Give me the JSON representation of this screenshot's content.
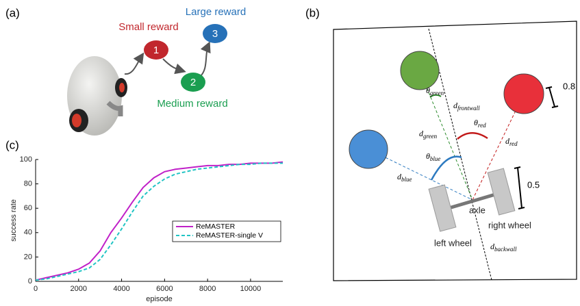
{
  "panels": {
    "a": "(a)",
    "b": "(b)",
    "c": "(c)"
  },
  "reward_diagram": {
    "nodes": [
      {
        "label": "1",
        "caption": "Small reward"
      },
      {
        "label": "2",
        "caption": "Medium reward"
      },
      {
        "label": "3",
        "caption": "Large reward"
      }
    ]
  },
  "arena": {
    "theta_green": {
      "symbol": "θ",
      "sub": "green"
    },
    "d_frontwall": {
      "symbol": "d",
      "sub": "frontwall"
    },
    "d_green": {
      "symbol": "d",
      "sub": "green"
    },
    "theta_red": {
      "symbol": "θ",
      "sub": "red"
    },
    "d_red": {
      "symbol": "d",
      "sub": "red"
    },
    "theta_blue": {
      "symbol": "θ",
      "sub": "blue"
    },
    "d_blue": {
      "symbol": "d",
      "sub": "blue"
    },
    "d_backwall": {
      "symbol": "d",
      "sub": "backwall"
    },
    "axle": "axle",
    "left_wheel": "left wheel",
    "right_wheel": "right wheel",
    "scale_circle": "0.8",
    "scale_axle": "0.5"
  },
  "chart_data": {
    "type": "line",
    "x_label": "episode",
    "y_label": "success rate",
    "x": [
      0,
      500,
      1000,
      1500,
      2000,
      2500,
      3000,
      3500,
      4000,
      4500,
      5000,
      5500,
      6000,
      6500,
      7000,
      7500,
      8000,
      8500,
      9000,
      9500,
      10000,
      10500,
      11000,
      11500
    ],
    "series": [
      {
        "name": "ReMASTER",
        "color": "#c020c8",
        "linestyle": "solid",
        "values": [
          1,
          3,
          5,
          7,
          10,
          15,
          25,
          40,
          52,
          65,
          77,
          85,
          90,
          92,
          93,
          94,
          95,
          95,
          96,
          96,
          97,
          97,
          97,
          98
        ]
      },
      {
        "name": "ReMASTER-single V",
        "color": "#20c4c4",
        "linestyle": "dashed",
        "values": [
          1,
          2,
          4,
          6,
          8,
          11,
          18,
          30,
          43,
          57,
          70,
          78,
          84,
          88,
          90,
          92,
          93,
          94,
          95,
          96,
          96,
          97,
          97,
          97
        ]
      }
    ],
    "xlim": [
      0,
      11500
    ],
    "ylim": [
      0,
      100
    ],
    "xticks": [
      0,
      2000,
      4000,
      6000,
      8000,
      10000
    ],
    "yticks": [
      0,
      20,
      40,
      60,
      80,
      100
    ],
    "legend": "lower right"
  }
}
